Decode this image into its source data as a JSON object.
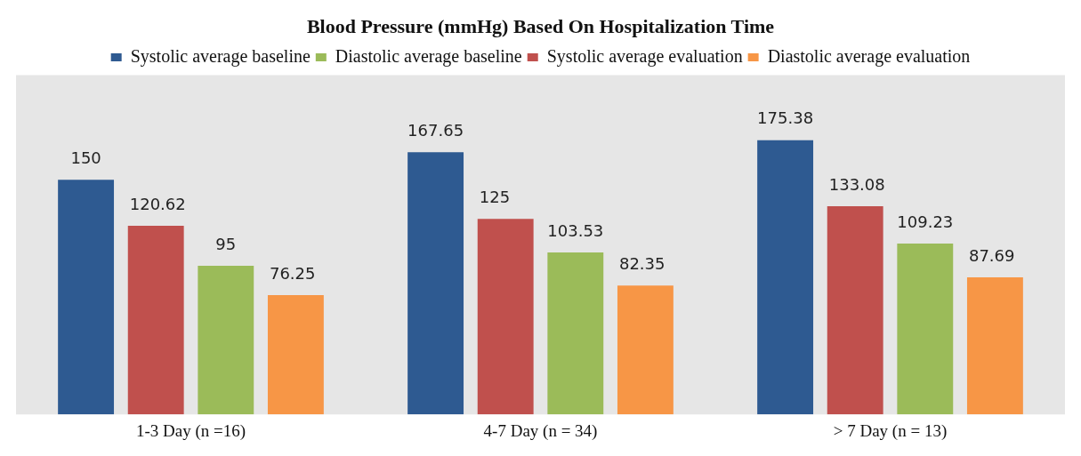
{
  "chart_data": {
    "type": "bar",
    "title": "Blood Pressure (mmHg) Based On Hospitalization Time",
    "categories": [
      "1-3 Day (n =16)",
      "4-7 Day (n = 34)",
      "> 7 Day (n = 13)"
    ],
    "series": [
      {
        "name": "Systolic average baseline",
        "color": "#2e5a91",
        "values": [
          150,
          167.65,
          175.38
        ]
      },
      {
        "name": "Systolic average evaluation",
        "color": "#c0504d",
        "values": [
          120.62,
          125,
          133.08
        ]
      },
      {
        "name": "Diastolic average baseline",
        "color": "#9bbb59",
        "values": [
          95,
          103.53,
          109.23
        ]
      },
      {
        "name": "Diastolic average evaluation",
        "color": "#f79646",
        "values": [
          76.25,
          82.35,
          87.69
        ]
      }
    ],
    "tick_labels": "x",
    "data_labels": true,
    "legend": "top",
    "grid": false
  }
}
